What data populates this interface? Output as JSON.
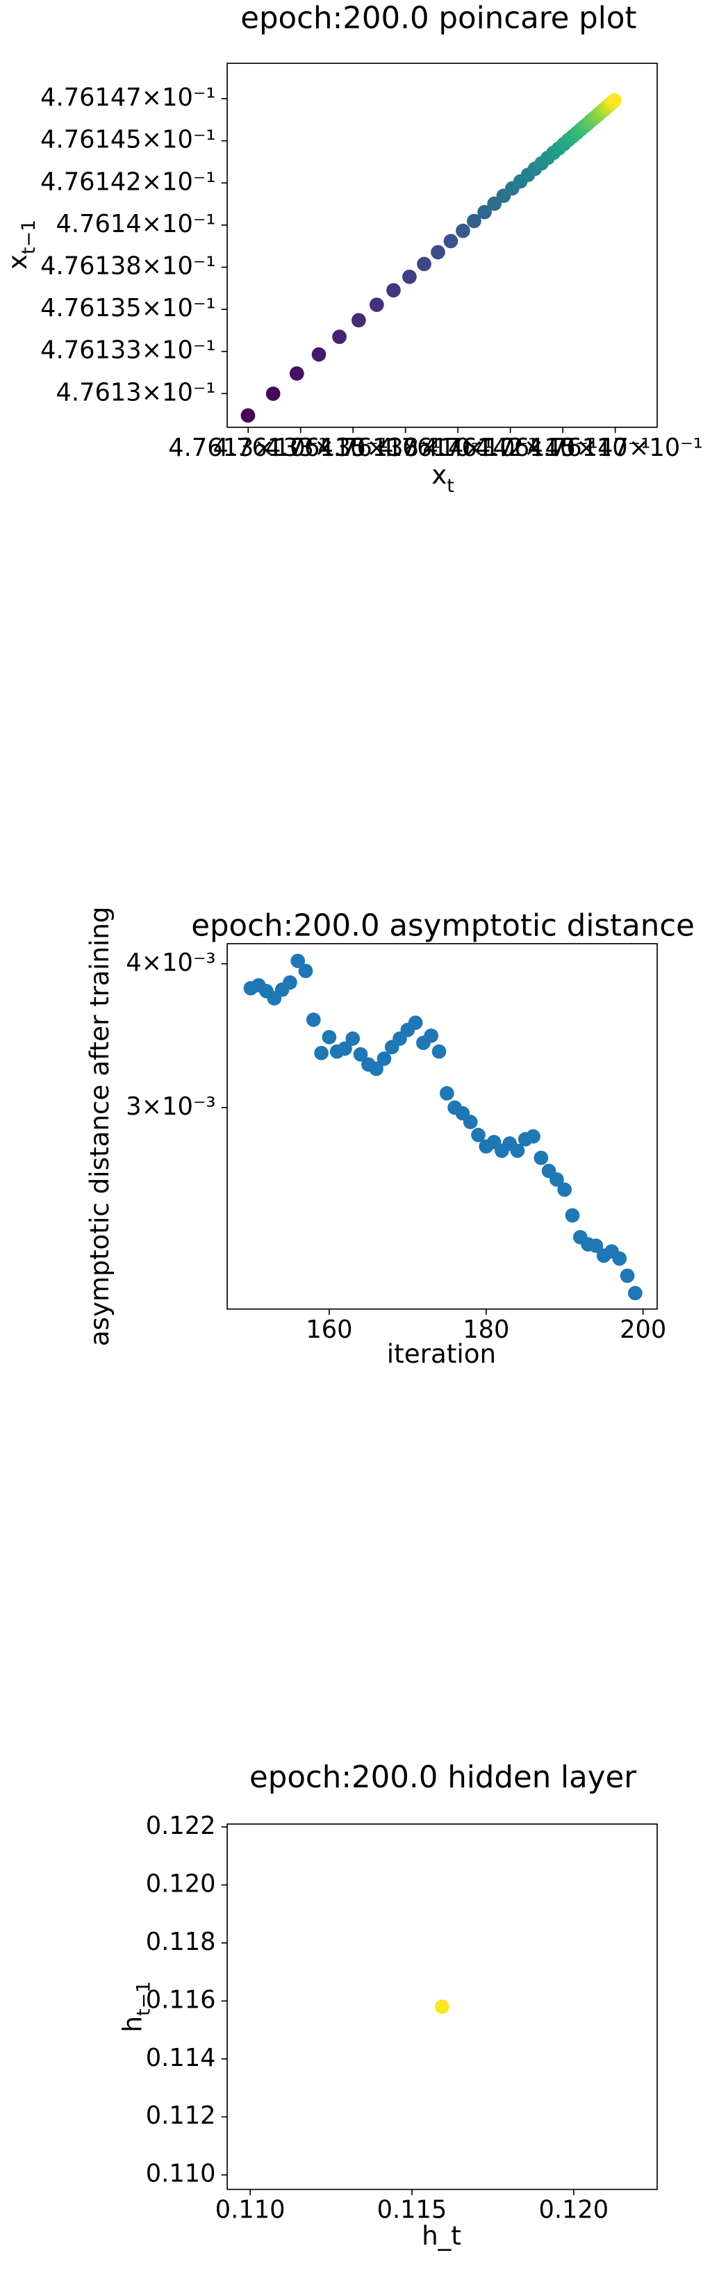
{
  "chart_data": [
    {
      "type": "scatter",
      "title": "epoch:200.0 poincare plot",
      "xlabel": {
        "text": "x",
        "subscript": "t"
      },
      "ylabel": {
        "text": "x",
        "subscript": "t−1"
      },
      "xscale": "log",
      "yscale": "log",
      "colormap": "viridis",
      "xlim": [
        0.476129,
        0.4761495
      ],
      "ylim": [
        0.476128,
        0.4761496
      ],
      "xticks": [
        {
          "value": 0.47613,
          "label": "4.7613×10⁻¹"
        },
        {
          "value": 0.4761325,
          "label": "4.76133×10⁻¹"
        },
        {
          "value": 0.476135,
          "label": "4.76135×10⁻¹"
        },
        {
          "value": 0.4761375,
          "label": "4.76138×10⁻¹"
        },
        {
          "value": 0.47614,
          "label": "4.7614×10⁻¹"
        },
        {
          "value": 0.4761425,
          "label": "4.76142×10⁻¹"
        },
        {
          "value": 0.476145,
          "label": "4.76145×10⁻¹"
        },
        {
          "value": 0.4761475,
          "label": "4.76147×10⁻¹"
        }
      ],
      "yticks": [
        {
          "value": 0.47613,
          "label": "4.7613×10⁻¹"
        },
        {
          "value": 0.4761325,
          "label": "4.76133×10⁻¹"
        },
        {
          "value": 0.476135,
          "label": "4.76135×10⁻¹"
        },
        {
          "value": 0.4761375,
          "label": "4.76138×10⁻¹"
        },
        {
          "value": 0.47614,
          "label": "4.7614×10⁻¹"
        },
        {
          "value": 0.4761425,
          "label": "4.76142×10⁻¹"
        },
        {
          "value": 0.476145,
          "label": "4.76145×10⁻¹"
        },
        {
          "value": 0.4761475,
          "label": "4.76147×10⁻¹"
        }
      ],
      "x": [
        0.47612999,
        0.47613119,
        0.47613232,
        0.47613337,
        0.47613435,
        0.47613527,
        0.47613613,
        0.47613693,
        0.47613769,
        0.47613839,
        0.47613905,
        0.47613966,
        0.47614024,
        0.47614077,
        0.47614127,
        0.47614174,
        0.47614218,
        0.47614259,
        0.47614298,
        0.47614334,
        0.47614367,
        0.47614399,
        0.47614428,
        0.47614455,
        0.47614481,
        0.47614505,
        0.47614527,
        0.47614548,
        0.47614568,
        0.47614586,
        0.47614603,
        0.4761462,
        0.47614634,
        0.47614648,
        0.47614662,
        0.47614674,
        0.47614685,
        0.47614696,
        0.47614706,
        0.47614715,
        0.47614724,
        0.47614732,
        0.4761474,
        0.47614747
      ],
      "y": [
        0.4761287,
        0.47612999,
        0.47613119,
        0.47613232,
        0.47613337,
        0.47613435,
        0.47613527,
        0.47613613,
        0.47613693,
        0.47613769,
        0.47613839,
        0.47613905,
        0.47613966,
        0.47614024,
        0.47614077,
        0.47614127,
        0.47614174,
        0.47614218,
        0.47614259,
        0.47614298,
        0.47614334,
        0.47614367,
        0.47614399,
        0.47614428,
        0.47614455,
        0.47614481,
        0.47614505,
        0.47614527,
        0.47614548,
        0.47614568,
        0.47614586,
        0.47614603,
        0.4761462,
        0.47614634,
        0.47614648,
        0.47614662,
        0.47614674,
        0.47614685,
        0.47614696,
        0.47614706,
        0.47614715,
        0.47614724,
        0.47614732,
        0.4761474
      ]
    },
    {
      "type": "scatter",
      "title": "epoch:200.0 asymptotic distance",
      "xlabel": {
        "text": "iteration"
      },
      "ylabel": {
        "text": "asymptotic distance after training"
      },
      "xscale": "linear",
      "yscale": "log",
      "color": "#1f77b4",
      "xlim": [
        147,
        201.8
      ],
      "ylim": [
        0.002005,
        0.004164
      ],
      "xticks": [
        160,
        180,
        200
      ],
      "yticks": [
        {
          "value": 0.003,
          "label": "3×10⁻³"
        },
        {
          "value": 0.004,
          "label": "4×10⁻³"
        }
      ],
      "x": [
        150,
        151,
        152,
        153,
        154,
        155,
        156,
        157,
        158,
        159,
        160,
        161,
        162,
        163,
        164,
        165,
        166,
        167,
        168,
        169,
        170,
        171,
        172,
        173,
        174,
        175,
        176,
        177,
        178,
        179,
        180,
        181,
        182,
        183,
        184,
        185,
        186,
        187,
        188,
        189,
        190,
        191,
        192,
        193,
        194,
        195,
        196,
        197,
        198,
        199
      ],
      "y": [
        0.003809,
        0.003831,
        0.003787,
        0.003733,
        0.003798,
        0.003853,
        0.004023,
        0.003943,
        0.003576,
        0.003346,
        0.003454,
        0.003356,
        0.003376,
        0.003444,
        0.003337,
        0.00327,
        0.003242,
        0.003308,
        0.003386,
        0.003444,
        0.003504,
        0.003555,
        0.003415,
        0.003464,
        0.003356,
        0.003087,
        0.003,
        0.002966,
        0.002915,
        0.00284,
        0.002776,
        0.0028,
        0.002752,
        0.002792,
        0.002752,
        0.002816,
        0.002832,
        0.002713,
        0.002643,
        0.002598,
        0.002546,
        0.002418,
        0.002315,
        0.002282,
        0.002276,
        0.002231,
        0.00225,
        0.002218,
        0.002143,
        0.00207
      ]
    },
    {
      "type": "scatter",
      "title": "epoch:200.0 hidden layer",
      "xlabel": {
        "text": "h_t"
      },
      "ylabel": {
        "text": "h",
        "subscript": "t−1"
      },
      "xscale": "linear",
      "yscale": "linear",
      "color": "#fde725",
      "xlim": [
        0.10929,
        0.12258
      ],
      "ylim": [
        0.1095,
        0.1221
      ],
      "xticks": [
        {
          "value": 0.11,
          "label": "0.110"
        },
        0.115,
        {
          "value": 0.12,
          "label": "0.120"
        }
      ],
      "yticks": [
        {
          "value": 0.11,
          "label": "0.110"
        },
        0.112,
        0.114,
        0.116,
        0.118,
        {
          "value": 0.12,
          "label": "0.120"
        },
        0.122
      ],
      "x": [
        0.11593
      ],
      "y": [
        0.1158
      ]
    }
  ]
}
